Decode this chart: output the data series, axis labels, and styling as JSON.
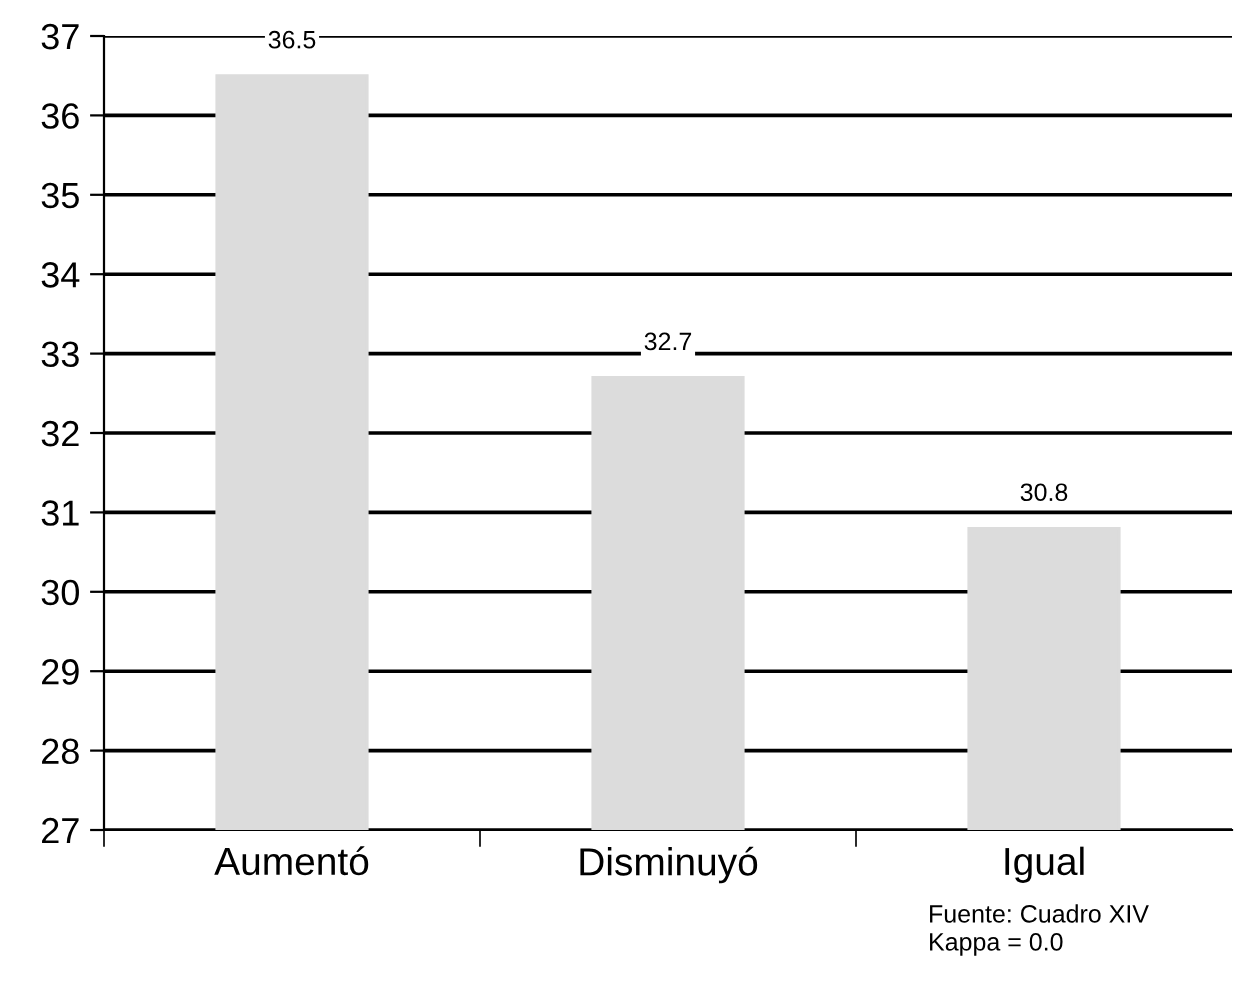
{
  "chart_data": {
    "type": "bar",
    "categories": [
      "Aumentó",
      "Disminuyó",
      "Igual"
    ],
    "values": [
      36.5,
      32.7,
      30.8
    ],
    "color": "#dcdcdc",
    "ylim": [
      27,
      37
    ],
    "yticks": [
      27,
      28,
      29,
      30,
      31,
      32,
      33,
      34,
      35,
      36,
      37
    ],
    "grid": "y",
    "data_labels": true,
    "annotations": [
      "Fuente: Cuadro XIV",
      "Kappa = 0.0"
    ]
  }
}
